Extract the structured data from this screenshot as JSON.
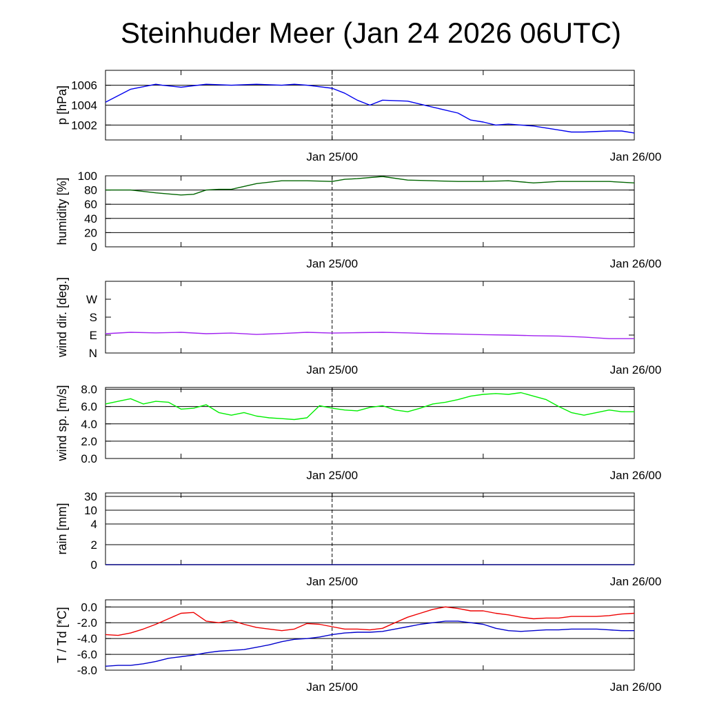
{
  "title": "Steinhuder Meer (Jan 24 2026 06UTC)",
  "chart_data": [
    {
      "id": "pressure",
      "type": "line",
      "ylabel": "p [hPa]",
      "ylim": [
        1000.5,
        1007.5
      ],
      "yticks": [
        1002,
        1004,
        1006
      ],
      "ytick_labels": [
        "1002",
        "1004",
        "1006"
      ],
      "grid": true,
      "x_tick_labels": [
        "Jan 25/00",
        "Jan 26/00"
      ],
      "x_hours": [
        0,
        2,
        4,
        4.5,
        6,
        8,
        10,
        12,
        14,
        15,
        16,
        18,
        19,
        20,
        21,
        22,
        24,
        26,
        28,
        29,
        30,
        31,
        32,
        33,
        34,
        35,
        36,
        37,
        38,
        40,
        41,
        42
      ],
      "series": [
        {
          "color": "#0000ee",
          "values": [
            1004.3,
            1005.6,
            1006.1,
            1006.0,
            1005.8,
            1006.1,
            1006.0,
            1006.1,
            1006.0,
            1006.1,
            1006.0,
            1005.7,
            1005.2,
            1004.5,
            1004.0,
            1004.5,
            1004.4,
            1003.8,
            1003.2,
            1002.5,
            1002.3,
            1002.0,
            1002.1,
            1002.0,
            1001.9,
            1001.7,
            1001.5,
            1001.3,
            1001.3,
            1001.4,
            1001.4,
            1001.2
          ]
        }
      ]
    },
    {
      "id": "humidity",
      "type": "line",
      "ylabel": "humidity [%]",
      "ylim": [
        0,
        100
      ],
      "yticks": [
        0,
        20,
        40,
        60,
        80,
        100
      ],
      "ytick_labels": [
        "0",
        "20",
        "40",
        "60",
        "80",
        "100"
      ],
      "grid": true,
      "x_tick_labels": [
        "Jan 25/00",
        "Jan 26/00"
      ],
      "x_hours": [
        0,
        2,
        4,
        6,
        7,
        8,
        9,
        10,
        12,
        14,
        16,
        18,
        19,
        20,
        22,
        24,
        26,
        28,
        30,
        32,
        34,
        36,
        38,
        40,
        42
      ],
      "series": [
        {
          "color": "#006400",
          "values": [
            80,
            80,
            76,
            73,
            74,
            80,
            81,
            81,
            89,
            93,
            93,
            92,
            95,
            96,
            99,
            94,
            93,
            92,
            92,
            93,
            90,
            92,
            92,
            92,
            90
          ]
        }
      ]
    },
    {
      "id": "wind-direction",
      "type": "line",
      "ylabel": "wind dir. [deg.]",
      "ylim": [
        0,
        360
      ],
      "yticks": [
        0,
        90,
        180,
        270
      ],
      "ytick_labels": [
        "N",
        "E",
        "S",
        "W"
      ],
      "grid": false,
      "x_tick_labels": [
        "Jan 25/00",
        "Jan 26/00"
      ],
      "x_hours": [
        0,
        2,
        4,
        6,
        8,
        10,
        12,
        14,
        16,
        18,
        20,
        22,
        24,
        26,
        28,
        30,
        32,
        34,
        36,
        38,
        40,
        42
      ],
      "series": [
        {
          "color": "#a020f0",
          "values": [
            97,
            104,
            101,
            104,
            97,
            100,
            93,
            98,
            104,
            100,
            102,
            104,
            101,
            97,
            95,
            92,
            90,
            87,
            85,
            80,
            72,
            72
          ]
        }
      ]
    },
    {
      "id": "wind-speed",
      "type": "line",
      "ylabel": "wind sp. [m/s]",
      "ylim": [
        0,
        8.2
      ],
      "yticks": [
        0,
        2,
        4,
        6,
        8
      ],
      "ytick_labels": [
        "0.0",
        "2.0",
        "4.0",
        "6.0",
        "8.0"
      ],
      "grid": true,
      "x_tick_labels": [
        "Jan 25/00",
        "Jan 26/00"
      ],
      "x_hours": [
        0,
        1,
        2,
        3,
        4,
        5,
        6,
        7,
        8,
        9,
        10,
        11,
        12,
        13,
        14,
        15,
        16,
        17,
        18,
        19,
        20,
        21,
        22,
        23,
        24,
        25,
        26,
        27,
        28,
        29,
        30,
        31,
        32,
        33,
        34,
        35,
        36,
        37,
        38,
        39,
        40,
        41,
        42
      ],
      "series": [
        {
          "color": "#00ee00",
          "values": [
            6.3,
            6.6,
            6.9,
            6.3,
            6.6,
            6.5,
            5.7,
            5.8,
            6.2,
            5.3,
            5.0,
            5.3,
            4.9,
            4.7,
            4.6,
            4.5,
            4.7,
            6.1,
            5.8,
            5.6,
            5.5,
            5.9,
            6.1,
            5.6,
            5.4,
            5.8,
            6.3,
            6.5,
            6.8,
            7.2,
            7.4,
            7.5,
            7.4,
            7.6,
            7.2,
            6.8,
            6.0,
            5.3,
            5.0,
            5.3,
            5.6,
            5.4,
            5.4
          ]
        }
      ]
    },
    {
      "id": "rain",
      "type": "line",
      "ylabel": "rain [mm]",
      "ylim": [
        0,
        30
      ],
      "yticks": [
        0,
        2,
        4,
        10,
        30
      ],
      "ytick_labels": [
        "0",
        "2",
        "4",
        "10",
        "30"
      ],
      "grid": true,
      "x_tick_labels": [
        "Jan 25/00",
        "Jan 26/00"
      ],
      "x_hours": [
        0,
        42
      ],
      "series": [
        {
          "color": "#000080",
          "values": [
            0,
            0
          ]
        }
      ]
    },
    {
      "id": "temperature",
      "type": "line",
      "ylabel": "T / Td [*C]",
      "ylim": [
        -8.0,
        0.9
      ],
      "yticks": [
        -8,
        -6,
        -4,
        -2,
        0
      ],
      "ytick_labels": [
        "-8.0",
        "-6.0",
        "-4.0",
        "-2.0",
        "0.0"
      ],
      "grid": true,
      "x_tick_labels": [
        "Jan 25/00",
        "Jan 26/00"
      ],
      "x_hours": [
        0,
        1,
        2,
        3,
        4,
        5,
        6,
        7,
        8,
        9,
        10,
        11,
        12,
        13,
        14,
        15,
        16,
        17,
        18,
        19,
        20,
        21,
        22,
        23,
        24,
        25,
        26,
        27,
        28,
        29,
        30,
        31,
        32,
        33,
        34,
        35,
        36,
        37,
        38,
        39,
        40,
        41,
        42
      ],
      "series": [
        {
          "color": "#ee0000",
          "values": [
            -3.5,
            -3.6,
            -3.3,
            -2.8,
            -2.2,
            -1.5,
            -0.8,
            -0.7,
            -1.8,
            -2.0,
            -1.7,
            -2.2,
            -2.6,
            -2.8,
            -3.0,
            -2.8,
            -2.1,
            -2.2,
            -2.5,
            -2.8,
            -2.8,
            -2.9,
            -2.7,
            -2.0,
            -1.3,
            -0.8,
            -0.3,
            0.0,
            -0.2,
            -0.5,
            -0.5,
            -0.8,
            -1.0,
            -1.3,
            -1.5,
            -1.4,
            -1.4,
            -1.2,
            -1.2,
            -1.2,
            -1.1,
            -0.9,
            -0.8
          ]
        },
        {
          "color": "#0000cc",
          "values": [
            -7.5,
            -7.4,
            -7.4,
            -7.2,
            -6.9,
            -6.5,
            -6.3,
            -6.1,
            -5.8,
            -5.6,
            -5.5,
            -5.4,
            -5.1,
            -4.8,
            -4.4,
            -4.1,
            -4.0,
            -3.8,
            -3.5,
            -3.3,
            -3.2,
            -3.2,
            -3.1,
            -2.8,
            -2.5,
            -2.2,
            -2.0,
            -1.8,
            -1.8,
            -2.0,
            -2.2,
            -2.7,
            -3.0,
            -3.1,
            -3.0,
            -2.9,
            -2.9,
            -2.8,
            -2.8,
            -2.8,
            -2.9,
            -3.0,
            -3.0
          ]
        }
      ]
    }
  ]
}
